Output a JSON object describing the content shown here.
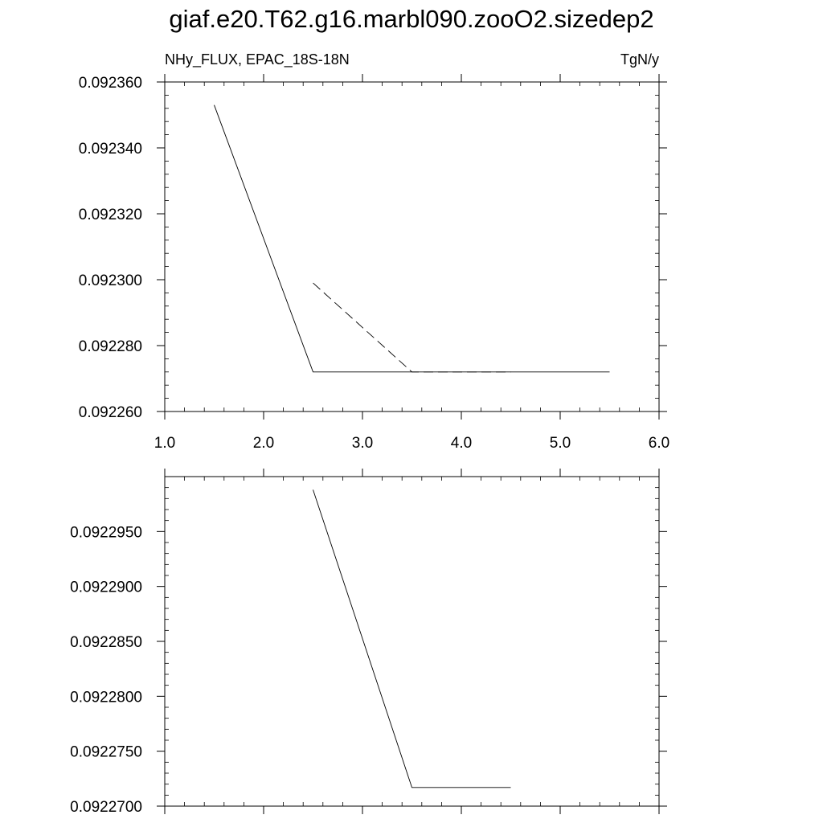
{
  "page_title": "giaf.e20.T62.g16.marbl090.zooO2.sizedep2",
  "chart_data": [
    {
      "type": "line",
      "left_label": "NHy_FLUX, EPAC_18S-18N",
      "right_label": "TgN/y",
      "xlim": [
        1.0,
        6.0
      ],
      "ylim": [
        0.09226,
        0.09236
      ],
      "x_ticks": [
        1.0,
        2.0,
        3.0,
        4.0,
        5.0,
        6.0
      ],
      "x_tick_labels": [
        "1.0",
        "2.0",
        "3.0",
        "4.0",
        "5.0",
        "6.0"
      ],
      "y_ticks": [
        0.09226,
        0.09228,
        0.0923,
        0.09232,
        0.09234,
        0.09236
      ],
      "y_tick_labels": [
        "0.092260",
        "0.092280",
        "0.092300",
        "0.092320",
        "0.092340",
        "0.092360"
      ],
      "grid": false,
      "series": [
        {
          "style": "solid",
          "color": "#000000",
          "x": [
            1.5,
            2.5,
            3.5,
            4.5,
            5.5
          ],
          "y": [
            0.092353,
            0.092272,
            0.092272,
            0.092272,
            0.092272
          ]
        },
        {
          "style": "dashed",
          "color": "#000000",
          "x": [
            2.5,
            3.5,
            4.5
          ],
          "y": [
            0.092299,
            0.092272,
            0.092272
          ]
        }
      ]
    },
    {
      "type": "line",
      "xlim": [
        1.0,
        6.0
      ],
      "ylim": [
        0.09227,
        0.0923
      ],
      "x_ticks": [
        1.0,
        2.0,
        3.0,
        4.0,
        5.0,
        6.0
      ],
      "y_ticks": [
        0.09227,
        0.092275,
        0.09228,
        0.092285,
        0.09229,
        0.092295
      ],
      "y_tick_labels": [
        "0.0922700",
        "0.0922750",
        "0.0922800",
        "0.0922850",
        "0.0922900",
        "0.0922950"
      ],
      "grid": false,
      "series": [
        {
          "style": "solid",
          "color": "#000000",
          "x": [
            2.5,
            3.5,
            4.5
          ],
          "y": [
            0.0922988,
            0.0922717,
            0.0922717
          ]
        }
      ]
    }
  ]
}
